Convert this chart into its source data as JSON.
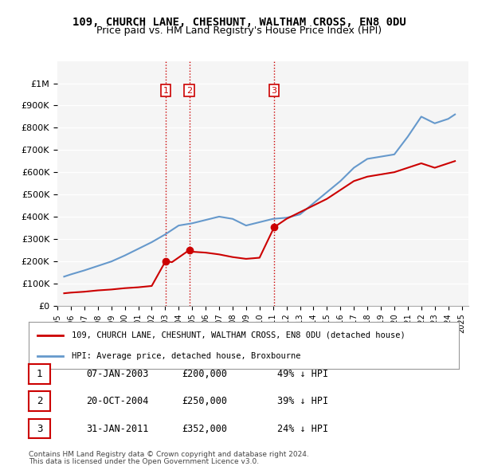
{
  "title": "109, CHURCH LANE, CHESHUNT, WALTHAM CROSS, EN8 0DU",
  "subtitle": "Price paid vs. HM Land Registry's House Price Index (HPI)",
  "legend_label_red": "109, CHURCH LANE, CHESHUNT, WALTHAM CROSS, EN8 0DU (detached house)",
  "legend_label_blue": "HPI: Average price, detached house, Broxbourne",
  "footer_line1": "Contains HM Land Registry data © Crown copyright and database right 2024.",
  "footer_line2": "This data is licensed under the Open Government Licence v3.0.",
  "sales": [
    {
      "num": 1,
      "date": "07-JAN-2003",
      "price": 200000,
      "pct": "49%",
      "x": 2003.03
    },
    {
      "num": 2,
      "date": "20-OCT-2004",
      "price": 250000,
      "pct": "39%",
      "x": 2004.8
    },
    {
      "num": 3,
      "date": "31-JAN-2011",
      "price": 352000,
      "pct": "24%",
      "x": 2011.08
    }
  ],
  "red_line": {
    "x": [
      1995.5,
      1996,
      1997,
      1998,
      1999,
      2000,
      2001,
      2002,
      2003.03,
      2003.5,
      2004.8,
      2005,
      2006,
      2007,
      2008,
      2009,
      2010,
      2011.08,
      2012,
      2013,
      2014,
      2015,
      2016,
      2017,
      2018,
      2019,
      2020,
      2021,
      2022,
      2023,
      2024,
      2024.5
    ],
    "y": [
      55000,
      58000,
      62000,
      68000,
      72000,
      78000,
      82000,
      88000,
      200000,
      195000,
      250000,
      242000,
      238000,
      230000,
      218000,
      210000,
      215000,
      352000,
      390000,
      420000,
      450000,
      480000,
      520000,
      560000,
      580000,
      590000,
      600000,
      620000,
      640000,
      620000,
      640000,
      650000
    ]
  },
  "blue_line": {
    "x": [
      1995.5,
      1996,
      1997,
      1998,
      1999,
      2000,
      2001,
      2002,
      2003,
      2004,
      2005,
      2006,
      2007,
      2008,
      2009,
      2010,
      2011,
      2012,
      2013,
      2014,
      2015,
      2016,
      2017,
      2018,
      2019,
      2020,
      2021,
      2022,
      2023,
      2024,
      2024.5
    ],
    "y": [
      130000,
      140000,
      158000,
      178000,
      198000,
      225000,
      255000,
      285000,
      320000,
      360000,
      370000,
      385000,
      400000,
      390000,
      360000,
      375000,
      390000,
      395000,
      410000,
      460000,
      510000,
      560000,
      620000,
      660000,
      670000,
      680000,
      760000,
      850000,
      820000,
      840000,
      860000
    ]
  },
  "ylim": [
    0,
    1100000
  ],
  "xlim": [
    1995.0,
    2025.5
  ],
  "yticks": [
    0,
    100000,
    200000,
    300000,
    400000,
    500000,
    600000,
    700000,
    800000,
    900000,
    1000000
  ],
  "ytick_labels": [
    "£0",
    "£100K",
    "£200K",
    "£300K",
    "£400K",
    "£500K",
    "£600K",
    "£700K",
    "£800K",
    "£900K",
    "£1M"
  ],
  "xticks": [
    1995,
    1996,
    1997,
    1998,
    1999,
    2000,
    2001,
    2002,
    2003,
    2004,
    2005,
    2006,
    2007,
    2008,
    2009,
    2010,
    2011,
    2012,
    2013,
    2014,
    2015,
    2016,
    2017,
    2018,
    2019,
    2020,
    2021,
    2022,
    2023,
    2024,
    2025
  ],
  "vline_color": "#cc0000",
  "vline_style": ":",
  "red_color": "#cc0000",
  "blue_color": "#6699cc",
  "bg_color": "#ffffff",
  "plot_bg": "#f5f5f5",
  "grid_color": "#ffffff",
  "title_fontsize": 10,
  "subtitle_fontsize": 9
}
